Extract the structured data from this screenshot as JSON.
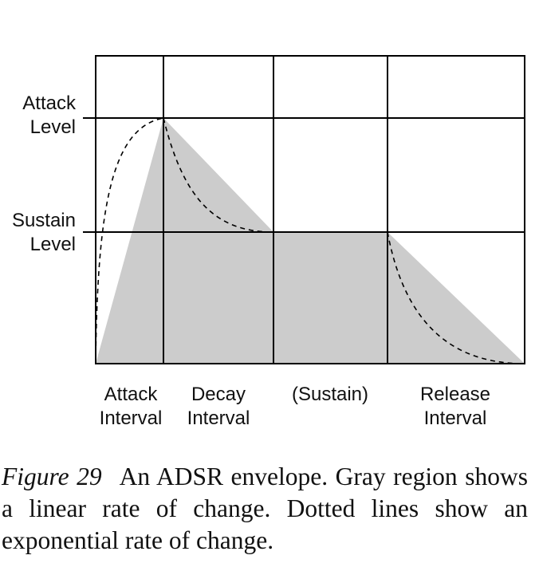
{
  "y_labels": {
    "attack_level": [
      "Attack",
      "Level"
    ],
    "sustain_level": [
      "Sustain",
      "Level"
    ]
  },
  "x_labels": {
    "attack_interval": [
      "Attack",
      "Interval"
    ],
    "decay_interval": [
      "Decay",
      "Interval"
    ],
    "sustain": [
      "(Sustain)"
    ],
    "release_interval": [
      "Release",
      "Interval"
    ]
  },
  "caption": {
    "figure_label": "Figure 29",
    "text": "An ADSR envelope. Gray region shows a linear rate of change. Dotted lines show an exponential rate of change."
  },
  "colors": {
    "linear_region_fill": "#cccccc",
    "grid_line": "#000000",
    "exponential_curve": "#000000"
  }
}
